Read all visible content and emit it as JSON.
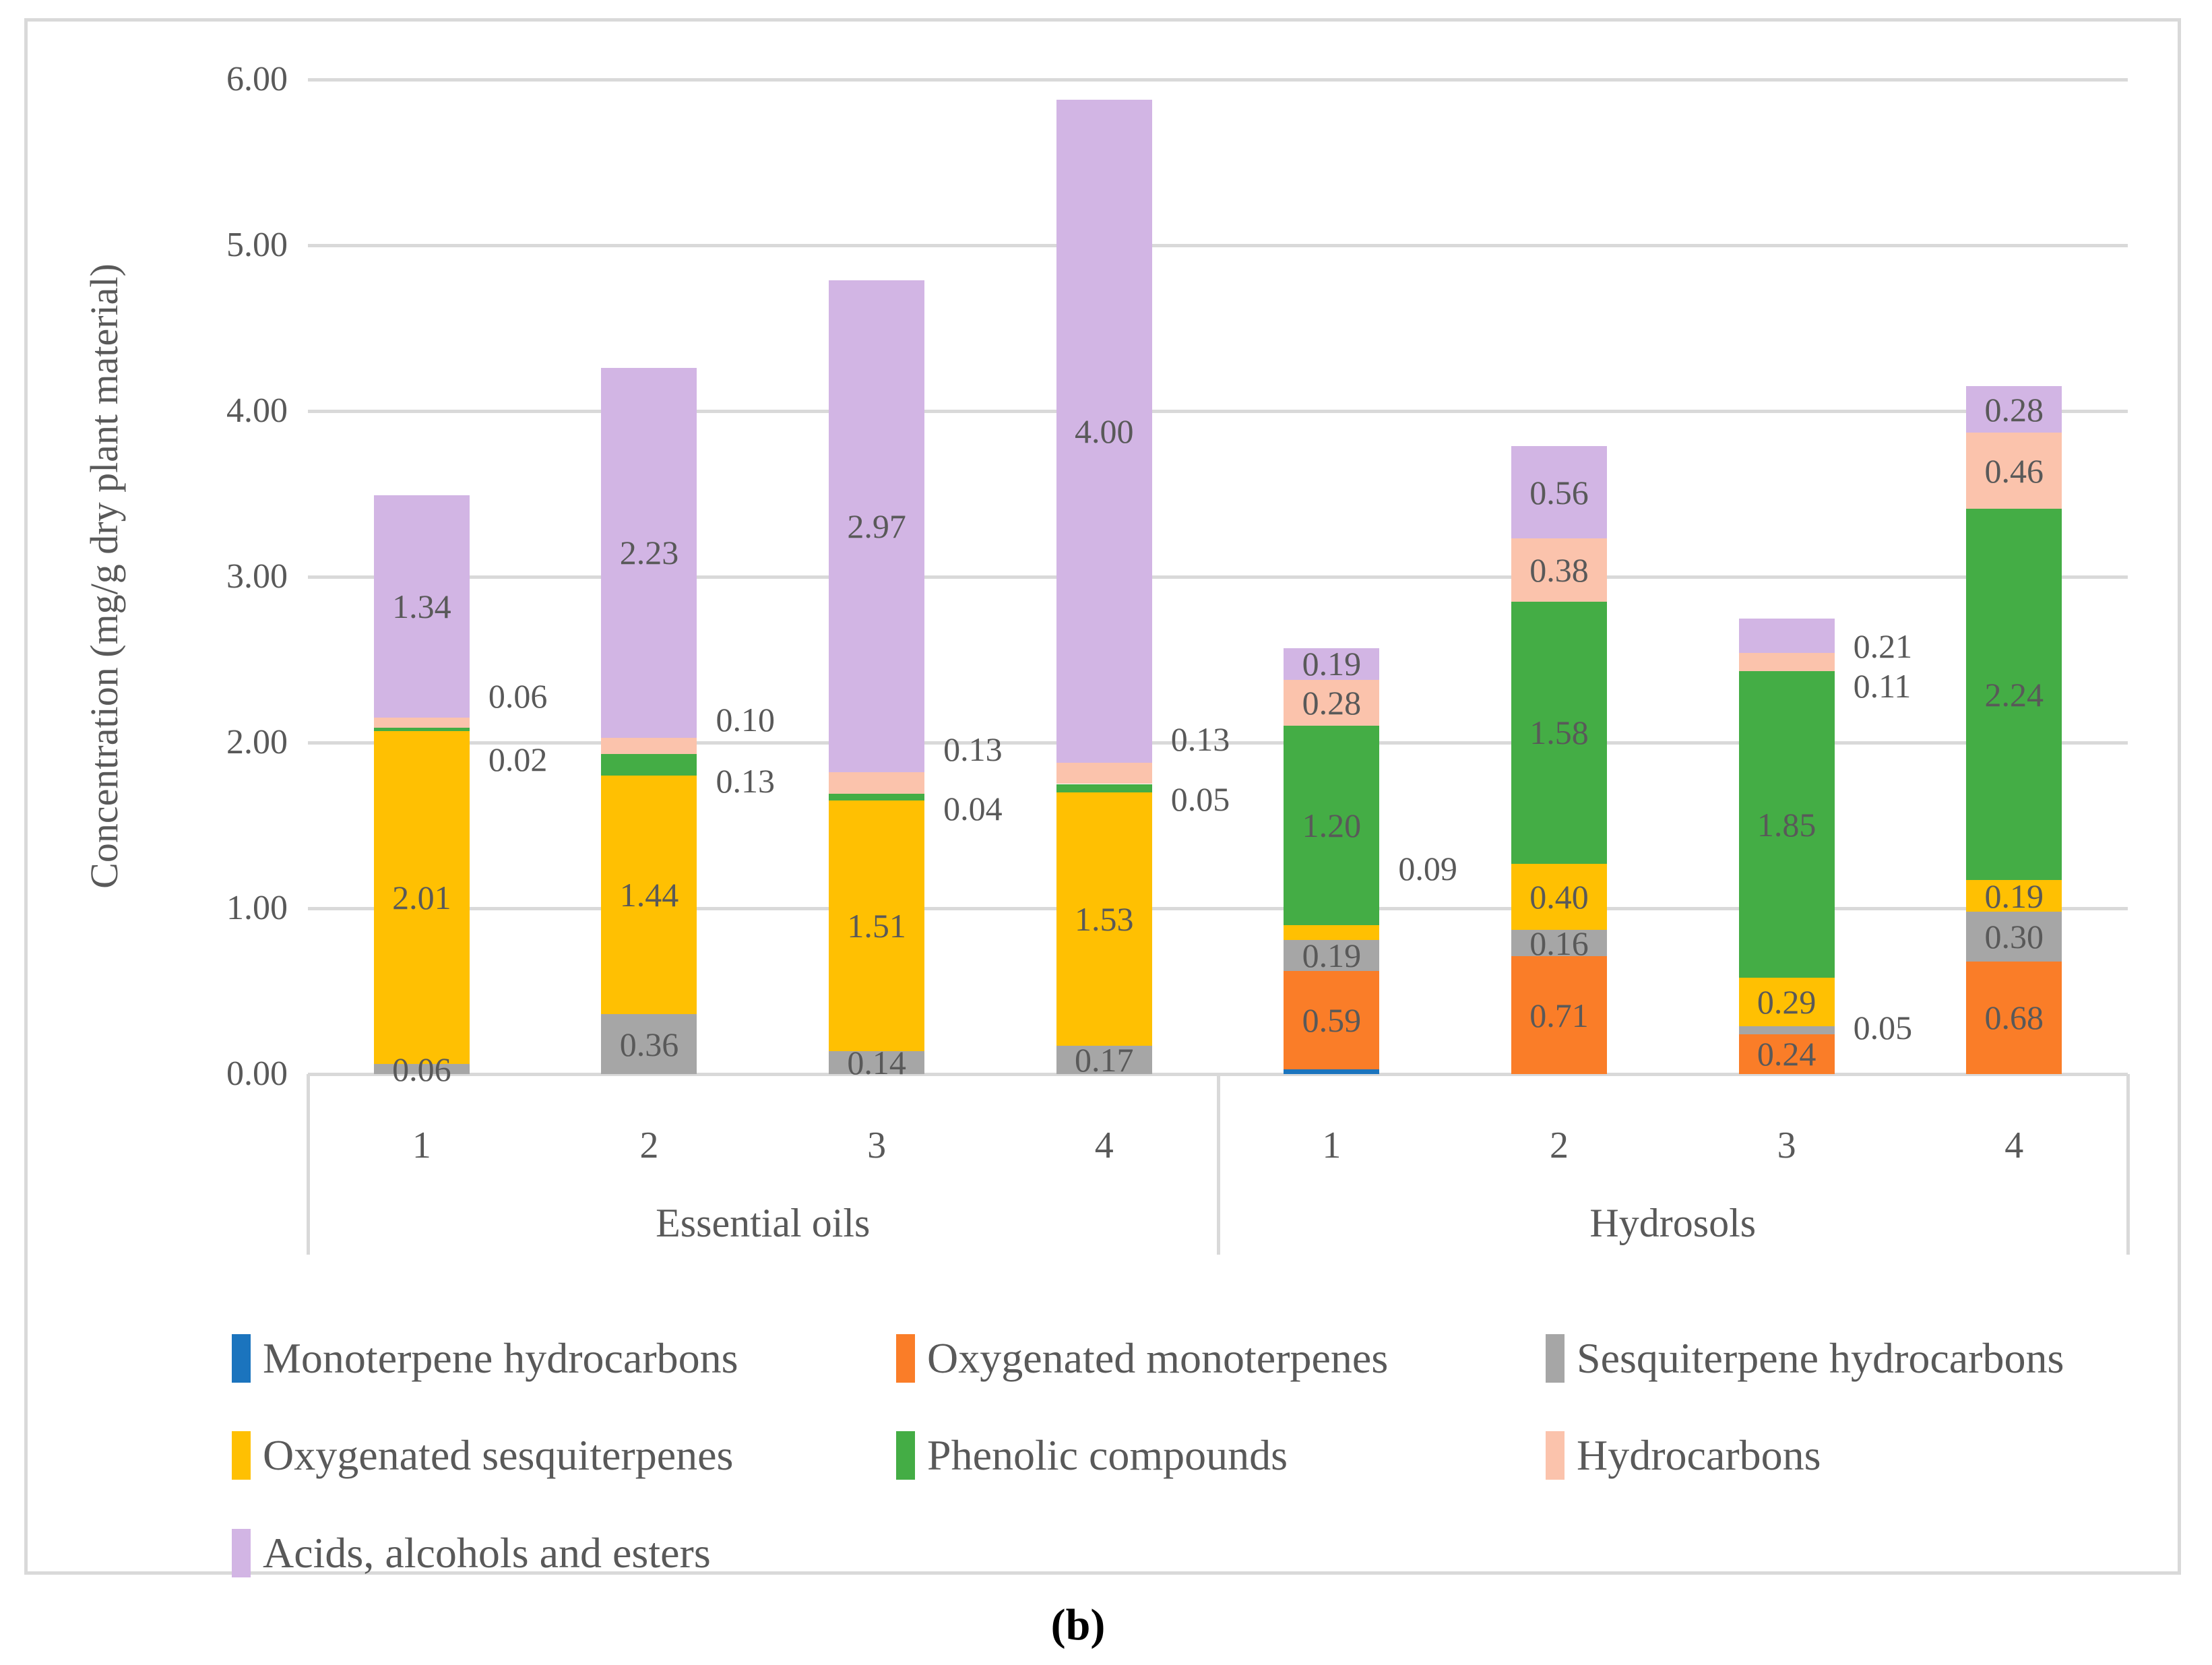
{
  "figure": {
    "caption": "(b)",
    "y_axis": {
      "title": "Concentration (mg/g dry plant material)",
      "ticks": [
        "0.00",
        "1.00",
        "2.00",
        "3.00",
        "4.00",
        "5.00",
        "6.00"
      ]
    },
    "groups": [
      {
        "label": "Essential oils",
        "categories": [
          "1",
          "2",
          "3",
          "4"
        ]
      },
      {
        "label": "Hydrosols",
        "categories": [
          "1",
          "2",
          "3",
          "4"
        ]
      }
    ],
    "legend": [
      {
        "label": "Monoterpene hydrocarbons",
        "color": "#1B74BE"
      },
      {
        "label": "Oxygenated monoterpenes",
        "color": "#FA7D28"
      },
      {
        "label": "Sesquiterpene hydrocarbons",
        "color": "#A6A6A6"
      },
      {
        "label": "Oxygenated sesquiterpenes",
        "color": "#FFC002"
      },
      {
        "label": "Phenolic compounds",
        "color": "#44AD45"
      },
      {
        "label": "Hydrocarbons",
        "color": "#FBC3AC"
      },
      {
        "label": "Acids, alcohols and esters",
        "color": "#D2B5E4"
      }
    ],
    "colors": {
      "gridline": "#D9D9D9",
      "frame": "#D9D9D9",
      "text": "#595959",
      "caption": "#000000"
    }
  },
  "chart_data": {
    "type": "bar",
    "stacked": true,
    "title": "",
    "xlabel": "",
    "ylabel": "Concentration (mg/g dry plant material)",
    "ylim": [
      0,
      6
    ],
    "grid": true,
    "legend_position": "bottom",
    "categories": [
      "Essential oils 1",
      "Essential oils 2",
      "Essential oils 3",
      "Essential oils 4",
      "Hydrosols 1",
      "Hydrosols 2",
      "Hydrosols 3",
      "Hydrosols 4"
    ],
    "series": [
      {
        "name": "Monoterpene hydrocarbons",
        "color": "#1B74BE",
        "values": [
          0,
          0,
          0,
          0,
          0.03,
          0,
          0,
          0
        ],
        "labels": [
          null,
          null,
          null,
          null,
          null,
          null,
          null,
          null
        ],
        "label_pos": [
          null,
          null,
          null,
          null,
          null,
          null,
          null,
          null
        ]
      },
      {
        "name": "Oxygenated monoterpenes",
        "color": "#FA7D28",
        "values": [
          0,
          0,
          0,
          0,
          0.59,
          0.71,
          0.24,
          0.68
        ],
        "labels": [
          null,
          null,
          null,
          null,
          "0.59",
          "0.71",
          "0.24",
          "0.68"
        ],
        "label_pos": [
          null,
          null,
          null,
          null,
          "in",
          "in",
          "in",
          "in"
        ]
      },
      {
        "name": "Sesquiterpene hydrocarbons",
        "color": "#A6A6A6",
        "values": [
          0.06,
          0.36,
          0.14,
          0.17,
          0.19,
          0.16,
          0.05,
          0.3
        ],
        "labels": [
          "0.06",
          "0.36",
          "0.14",
          "0.17",
          "0.19",
          "0.16",
          "0.05",
          "0.30"
        ],
        "label_pos": [
          "in",
          "in",
          "in",
          "in",
          "in",
          "in",
          0.28,
          "in"
        ]
      },
      {
        "name": "Oxygenated sesquiterpenes",
        "color": "#FFC002",
        "values": [
          2.01,
          1.44,
          1.51,
          1.53,
          0.09,
          0.4,
          0.29,
          0.19
        ],
        "labels": [
          "2.01",
          "1.44",
          "1.51",
          "1.53",
          "0.09",
          "0.40",
          "0.29",
          "0.19"
        ],
        "label_pos": [
          "in",
          "in",
          "in",
          "in",
          1.24,
          "in",
          "in",
          "in"
        ]
      },
      {
        "name": "Phenolic compounds",
        "color": "#44AD45",
        "values": [
          0.02,
          0.13,
          0.04,
          0.05,
          1.2,
          1.58,
          1.85,
          2.24
        ],
        "labels": [
          "0.02",
          "0.13",
          "0.04",
          "0.05",
          "1.20",
          "1.58",
          "1.85",
          "2.24"
        ],
        "label_pos": [
          1.9,
          1.77,
          1.6,
          1.66,
          "in",
          "in",
          "in",
          "in"
        ]
      },
      {
        "name": "Hydrocarbons",
        "color": "#FBC3AC",
        "values": [
          0.06,
          0.1,
          0.13,
          0.13,
          0.28,
          0.38,
          0.11,
          0.46
        ],
        "labels": [
          "0.06",
          "0.10",
          "0.13",
          "0.13",
          "0.28",
          "0.38",
          "0.11",
          "0.46"
        ],
        "label_pos": [
          2.28,
          2.14,
          1.96,
          2.02,
          "in",
          "in",
          2.34,
          "in"
        ]
      },
      {
        "name": "Acids, alcohols and esters",
        "color": "#D2B5E4",
        "values": [
          1.34,
          2.23,
          2.97,
          4.0,
          0.19,
          0.56,
          0.21,
          0.28
        ],
        "labels": [
          "1.34",
          "2.23",
          "2.97",
          "4.00",
          "0.19",
          "0.56",
          "0.21",
          "0.28"
        ],
        "label_pos": [
          "in",
          "in",
          "in",
          "in",
          "in",
          "in",
          2.58,
          "in"
        ]
      }
    ]
  }
}
